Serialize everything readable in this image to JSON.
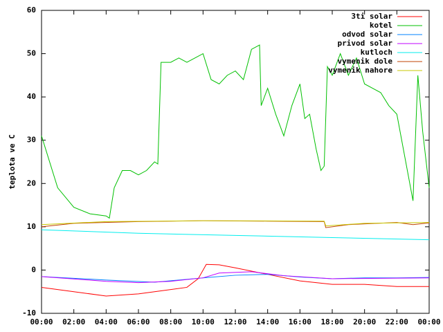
{
  "chart_data": {
    "type": "line",
    "y_label": "teplota ve C",
    "xlim": [
      0,
      24
    ],
    "ylim": [
      -10,
      60
    ],
    "xticks": [
      {
        "value": 0,
        "label": "00:00"
      },
      {
        "value": 2,
        "label": "02:00"
      },
      {
        "value": 4,
        "label": "04:00"
      },
      {
        "value": 6,
        "label": "06:00"
      },
      {
        "value": 8,
        "label": "08:00"
      },
      {
        "value": 10,
        "label": "10:00"
      },
      {
        "value": 12,
        "label": "12:00"
      },
      {
        "value": 14,
        "label": "14:00"
      },
      {
        "value": 16,
        "label": "16:00"
      },
      {
        "value": 18,
        "label": "18:00"
      },
      {
        "value": 20,
        "label": "20:00"
      },
      {
        "value": 22,
        "label": "22:00"
      },
      {
        "value": 24,
        "label": "00:00"
      }
    ],
    "yticks": [
      -10,
      0,
      10,
      20,
      30,
      40,
      50,
      60
    ],
    "legend": "top-right",
    "series": [
      {
        "name": "3ti solar",
        "color": "#ff0000",
        "x": [
          0,
          2,
          4,
          6,
          7,
          9,
          9.7,
          10.2,
          11,
          12,
          14,
          16,
          18,
          20,
          22,
          24
        ],
        "values": [
          -4,
          -5,
          -6,
          -5.5,
          -5,
          -4,
          -2,
          1.3,
          1.2,
          0.5,
          -1,
          -2.5,
          -3.3,
          -3.3,
          -3.8,
          -3.8
        ]
      },
      {
        "name": "kotel",
        "color": "#00c000",
        "x": [
          0,
          1,
          2,
          3,
          4,
          4.2,
          4.5,
          5,
          5.5,
          6,
          6.5,
          7,
          7.2,
          7.4,
          8,
          8.5,
          9,
          9.5,
          10,
          10.5,
          11,
          11.5,
          12,
          12.5,
          13,
          13.5,
          13.6,
          14,
          14.5,
          15,
          15.5,
          16,
          16.3,
          16.6,
          17,
          17.3,
          17.5,
          17.7,
          18,
          18.5,
          19,
          19.5,
          20,
          21,
          21.5,
          22,
          22.5,
          23,
          23.3,
          23.6,
          24
        ],
        "values": [
          31,
          19,
          14.5,
          13,
          12.5,
          12,
          19,
          23,
          23,
          22,
          23,
          25,
          24.5,
          48,
          48,
          49,
          48,
          49,
          50,
          44,
          43,
          45,
          46,
          44,
          51,
          52,
          38,
          42,
          36,
          31,
          38,
          43,
          35,
          36,
          28,
          23,
          24,
          47,
          45,
          50,
          45,
          49,
          43,
          41,
          38,
          36,
          26,
          16,
          45,
          32,
          19
        ]
      },
      {
        "name": "odvod solar",
        "color": "#0080ff",
        "x": [
          0,
          4,
          7,
          10,
          12,
          14,
          16,
          18,
          20,
          22,
          24
        ],
        "values": [
          -1.5,
          -2.3,
          -2.8,
          -1.8,
          -1.2,
          -1,
          -1.6,
          -2,
          -1.8,
          -1.8,
          -1.7
        ]
      },
      {
        "name": "privod solar",
        "color": "#c000ff",
        "x": [
          0,
          4,
          6,
          8,
          10,
          11,
          13,
          15,
          18,
          24
        ],
        "values": [
          -1.5,
          -2.6,
          -2.9,
          -2.6,
          -1.8,
          -0.7,
          -0.4,
          -1.3,
          -2,
          -1.8
        ]
      },
      {
        "name": "kutloch",
        "color": "#00eeee",
        "x": [
          0,
          6,
          12,
          18,
          24
        ],
        "values": [
          9.3,
          8.5,
          8,
          7.5,
          7
        ]
      },
      {
        "name": "vymenik dole",
        "color": "#c04000",
        "x": [
          0,
          2,
          6,
          10,
          14,
          17.5,
          17.6,
          19,
          22,
          23,
          24
        ],
        "values": [
          10,
          10.8,
          11.2,
          11.4,
          11.3,
          11.2,
          9.8,
          10.5,
          11,
          10.5,
          10.9
        ]
      },
      {
        "name": "vymenik nahore",
        "color": "#c8c800",
        "x": [
          0,
          4,
          10,
          17.5,
          17.6,
          20,
          24
        ],
        "values": [
          10.5,
          11.2,
          11.4,
          11.3,
          10.2,
          10.8,
          11
        ]
      }
    ]
  }
}
